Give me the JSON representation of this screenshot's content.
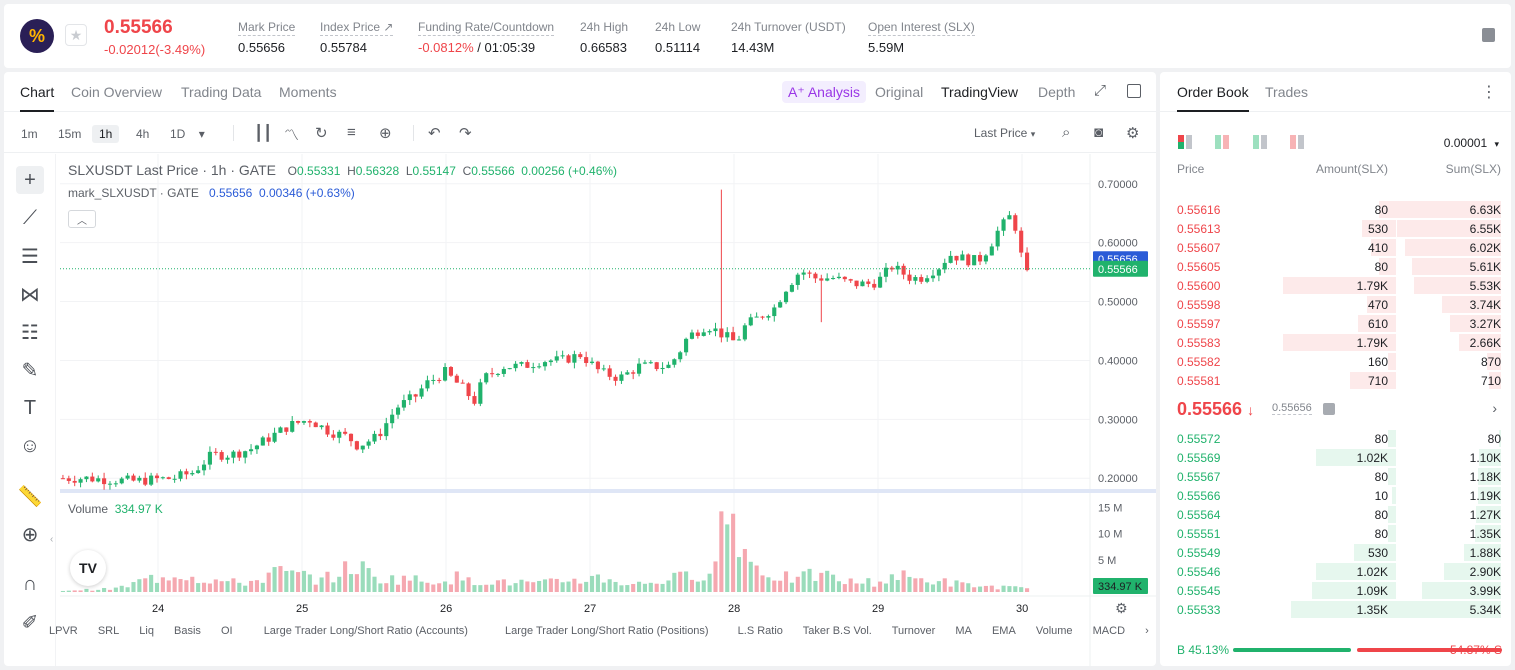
{
  "header": {
    "logo_glyph": "%",
    "last_price": "0.55566",
    "change": "-0.02012(-3.49%)",
    "stats": [
      {
        "label": "Mark Price",
        "value": "0.55656"
      },
      {
        "label": "Index Price ↗",
        "value": "0.55784"
      },
      {
        "label": "Funding Rate/Countdown",
        "value": "-0.0812%",
        "value2": " / 01:05:39"
      },
      {
        "label": "24h High",
        "value": "0.66583"
      },
      {
        "label": "24h Low",
        "value": "0.51114"
      },
      {
        "label": "24h Turnover (USDT)",
        "value": "14.43M"
      },
      {
        "label": "Open Interest (SLX)",
        "value": "5.59M"
      }
    ]
  },
  "chart_panel": {
    "tabs": [
      "Chart",
      "Coin Overview",
      "Trading Data",
      "Moments"
    ],
    "view_tabs": {
      "ai": "A⁺ Analysis",
      "original": "Original",
      "tradingview": "TradingView",
      "depth": "Depth"
    },
    "timeframes": [
      "1m",
      "15m",
      "1h",
      "4h",
      "1D"
    ],
    "active_timeframe": "1h",
    "last_price_select": "Last Price",
    "legend": {
      "symbol": "SLXUSDT Last Price · 1h · GATE",
      "o_label": "O",
      "o": "0.55331",
      "h_label": "H",
      "h": "0.56328",
      "l_label": "L",
      "l": "0.55147",
      "c_label": "C",
      "c": "0.55566",
      "change": "0.00256 (+0.46%)",
      "mark_name": "mark_SLXUSDT · GATE",
      "mark_value": "0.55656",
      "mark_change": "0.00346 (+0.63%)"
    },
    "volume_label": "Volume",
    "volume_value": "334.97 K",
    "bottom_tabs": [
      "LPVR",
      "SRL",
      "Liq",
      "Basis",
      "OI",
      "Large Trader Long/Short Ratio (Accounts)",
      "Large Trader Long/Short Ratio (Positions)",
      "L.S Ratio",
      "Taker B.S Vol.",
      "Turnover",
      "MA",
      "EMA",
      "Volume",
      "MACD"
    ],
    "tv_logo": "TV"
  },
  "chart_data": {
    "type": "candlestick",
    "symbol": "SLXUSDT",
    "interval": "1h",
    "y_ticks": [
      "0.70000",
      "0.60000",
      "0.50000",
      "0.40000",
      "0.30000",
      "0.20000"
    ],
    "ylim": [
      0.18,
      0.72
    ],
    "x_ticks": [
      "24",
      "25",
      "26",
      "27",
      "28",
      "29",
      "30"
    ],
    "mark_price_tag": "0.55656",
    "last_price_tag": "0.55566",
    "volume_ticks": [
      "15 M",
      "10 M",
      "5 M"
    ],
    "volume_tag": "334.97 K",
    "volume_max_m": 16,
    "price_path": [
      [
        0.0,
        0.2
      ],
      [
        0.03,
        0.2
      ],
      [
        0.08,
        0.195
      ],
      [
        0.1,
        0.198
      ],
      [
        0.12,
        0.2
      ],
      [
        0.14,
        0.21
      ],
      [
        0.16,
        0.24
      ],
      [
        0.18,
        0.24
      ],
      [
        0.2,
        0.25
      ],
      [
        0.22,
        0.27
      ],
      [
        0.24,
        0.29
      ],
      [
        0.26,
        0.3
      ],
      [
        0.28,
        0.28
      ],
      [
        0.3,
        0.27
      ],
      [
        0.31,
        0.255
      ],
      [
        0.33,
        0.27
      ],
      [
        0.35,
        0.32
      ],
      [
        0.37,
        0.34
      ],
      [
        0.38,
        0.36
      ],
      [
        0.4,
        0.38
      ],
      [
        0.42,
        0.35
      ],
      [
        0.43,
        0.33
      ],
      [
        0.44,
        0.37
      ],
      [
        0.46,
        0.39
      ],
      [
        0.48,
        0.39
      ],
      [
        0.5,
        0.4
      ],
      [
        0.52,
        0.4
      ],
      [
        0.54,
        0.41
      ],
      [
        0.56,
        0.38
      ],
      [
        0.58,
        0.37
      ],
      [
        0.6,
        0.39
      ],
      [
        0.62,
        0.39
      ],
      [
        0.63,
        0.39
      ],
      [
        0.64,
        0.41
      ],
      [
        0.65,
        0.44
      ],
      [
        0.67,
        0.46
      ],
      [
        0.68,
        0.45
      ],
      [
        0.69,
        0.44
      ],
      [
        0.7,
        0.43
      ],
      [
        0.71,
        0.46
      ],
      [
        0.73,
        0.48
      ],
      [
        0.74,
        0.49
      ],
      [
        0.75,
        0.52
      ],
      [
        0.765,
        0.55
      ],
      [
        0.77,
        0.55
      ],
      [
        0.78,
        0.54
      ],
      [
        0.8,
        0.54
      ],
      [
        0.82,
        0.53
      ],
      [
        0.84,
        0.53
      ],
      [
        0.85,
        0.54
      ],
      [
        0.86,
        0.56
      ],
      [
        0.88,
        0.54
      ],
      [
        0.89,
        0.54
      ],
      [
        0.9,
        0.55
      ],
      [
        0.91,
        0.56
      ],
      [
        0.92,
        0.58
      ],
      [
        0.93,
        0.575
      ],
      [
        0.94,
        0.57
      ],
      [
        0.95,
        0.57
      ],
      [
        0.96,
        0.59
      ],
      [
        0.97,
        0.62
      ],
      [
        0.98,
        0.64
      ],
      [
        0.985,
        0.65
      ],
      [
        0.99,
        0.61
      ],
      [
        0.995,
        0.57
      ],
      [
        1.0,
        0.545
      ]
    ],
    "volume_profile": [
      0.3,
      0.4,
      0.5,
      0.6,
      1.2,
      2.5,
      3.0,
      4.0,
      3.0,
      2.5,
      2.0,
      1.8,
      2.5,
      4.0,
      3.5,
      3.0,
      2.5,
      4.0,
      5.5,
      3.0,
      2.5,
      3.0,
      2.0,
      2.5,
      3.0,
      2.0,
      2.5,
      1.8,
      2.0,
      1.5,
      2.0,
      2.5,
      2.5,
      3.0,
      2.0,
      1.5,
      2.0,
      2.5,
      3.0,
      4.0,
      5.0,
      16.0,
      6.0,
      4.0,
      3.0,
      2.5,
      3.5,
      3.0,
      2.0,
      2.0,
      2.0,
      3.5,
      2.5,
      2.5,
      2.0,
      1.5,
      1.2,
      1.0,
      0.9,
      0.6
    ]
  },
  "orderbook": {
    "tabs": [
      "Order Book",
      "Trades"
    ],
    "precision": "0.00001",
    "headers": [
      "Price",
      "Amount(SLX)",
      "Sum(SLX)"
    ],
    "asks": [
      {
        "price": "0.55616",
        "amount": "80",
        "sum": "6.63K",
        "amt_frac": 0.04,
        "sum_frac": 1.0
      },
      {
        "price": "0.55613",
        "amount": "530",
        "sum": "6.55K",
        "amt_frac": 0.08,
        "sum_frac": 0.99
      },
      {
        "price": "0.55607",
        "amount": "410",
        "sum": "6.02K",
        "amt_frac": 0.06,
        "sum_frac": 0.91
      },
      {
        "price": "0.55605",
        "amount": "80",
        "sum": "5.61K",
        "amt_frac": 0.04,
        "sum_frac": 0.85
      },
      {
        "price": "0.55600",
        "amount": "1.79K",
        "sum": "5.53K",
        "amt_frac": 0.27,
        "sum_frac": 0.83
      },
      {
        "price": "0.55598",
        "amount": "470",
        "sum": "3.74K",
        "amt_frac": 0.07,
        "sum_frac": 0.56
      },
      {
        "price": "0.55597",
        "amount": "610",
        "sum": "3.27K",
        "amt_frac": 0.09,
        "sum_frac": 0.49
      },
      {
        "price": "0.55583",
        "amount": "1.79K",
        "sum": "2.66K",
        "amt_frac": 0.27,
        "sum_frac": 0.4
      },
      {
        "price": "0.55582",
        "amount": "160",
        "sum": "870",
        "amt_frac": 0.02,
        "sum_frac": 0.13
      },
      {
        "price": "0.55581",
        "amount": "710",
        "sum": "710",
        "amt_frac": 0.11,
        "sum_frac": 0.11
      }
    ],
    "mid_price": "0.55566",
    "mid_arrow": "↓",
    "mid_mark": "0.55656",
    "bids": [
      {
        "price": "0.55572",
        "amount": "80",
        "sum": "80",
        "amt_frac": 0.02,
        "sum_frac": 0.02
      },
      {
        "price": "0.55569",
        "amount": "1.02K",
        "sum": "1.10K",
        "amt_frac": 0.19,
        "sum_frac": 0.21
      },
      {
        "price": "0.55567",
        "amount": "80",
        "sum": "1.18K",
        "amt_frac": 0.02,
        "sum_frac": 0.22
      },
      {
        "price": "0.55566",
        "amount": "10",
        "sum": "1.19K",
        "amt_frac": 0.01,
        "sum_frac": 0.22
      },
      {
        "price": "0.55564",
        "amount": "80",
        "sum": "1.27K",
        "amt_frac": 0.02,
        "sum_frac": 0.24
      },
      {
        "price": "0.55551",
        "amount": "80",
        "sum": "1.35K",
        "amt_frac": 0.02,
        "sum_frac": 0.25
      },
      {
        "price": "0.55549",
        "amount": "530",
        "sum": "1.88K",
        "amt_frac": 0.1,
        "sum_frac": 0.35
      },
      {
        "price": "0.55546",
        "amount": "1.02K",
        "sum": "2.90K",
        "amt_frac": 0.19,
        "sum_frac": 0.54
      },
      {
        "price": "0.55545",
        "amount": "1.09K",
        "sum": "3.99K",
        "amt_frac": 0.2,
        "sum_frac": 0.75
      },
      {
        "price": "0.55533",
        "amount": "1.35K",
        "sum": "5.34K",
        "amt_frac": 0.25,
        "sum_frac": 1.0
      }
    ],
    "buy_label": "B 45.13%",
    "sell_label": "54.87% S",
    "buy_pct": 45.13
  },
  "colors": {
    "up": "#20b26c",
    "down": "#ef454a",
    "mark_tag": "#2a5bd7",
    "ai": "#9a36e6"
  }
}
